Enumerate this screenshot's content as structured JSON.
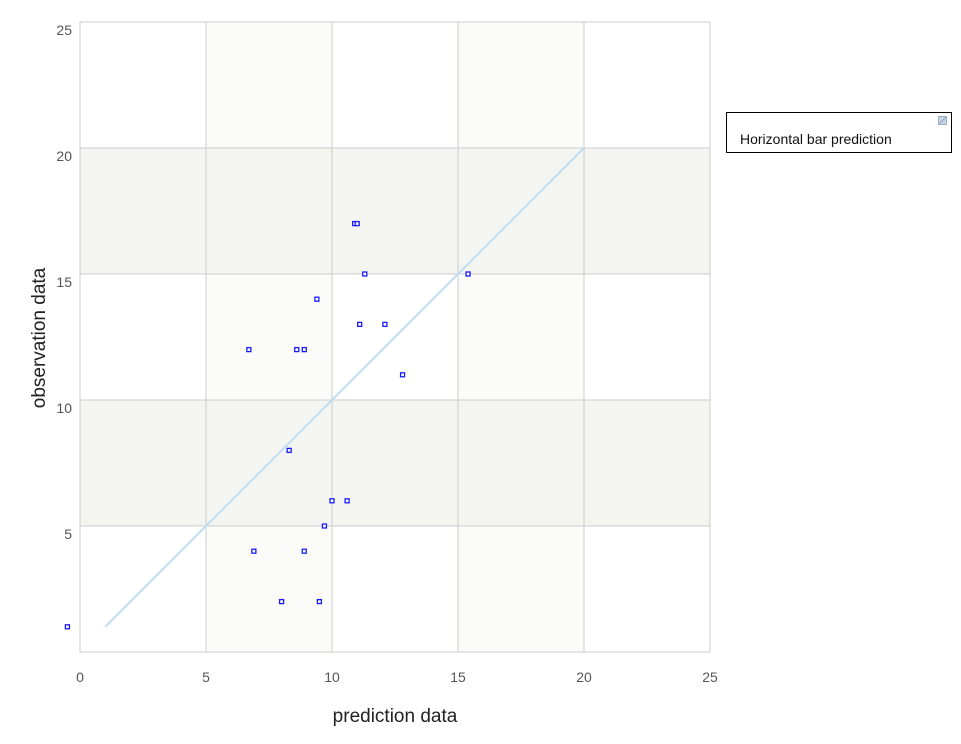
{
  "chart_data": {
    "type": "scatter",
    "title": "",
    "xlabel": "prediction data",
    "ylabel": "observation data",
    "xlim": [
      0,
      25
    ],
    "ylim": [
      0,
      25
    ],
    "x_ticks": [
      0,
      5,
      10,
      15,
      20,
      25
    ],
    "y_ticks": [
      5,
      10,
      15,
      20,
      25
    ],
    "grid": true,
    "background_bands": "alternating",
    "legend": {
      "placement": "right",
      "entries": [
        "Horizontal bar prediction"
      ]
    },
    "colors": {
      "points": "#1a1aff",
      "reference_line": "#bfdcf0",
      "band": "#f4f4f0",
      "band_alt": "#fbfbf9",
      "grid": "#cccccc"
    },
    "reference_line": {
      "x": [
        1,
        20
      ],
      "y": [
        1,
        20
      ]
    },
    "series": [
      {
        "points": [
          {
            "x": -0.5,
            "y": 1
          },
          {
            "x": 6.7,
            "y": 12
          },
          {
            "x": 6.9,
            "y": 4
          },
          {
            "x": 8.0,
            "y": 2
          },
          {
            "x": 8.3,
            "y": 8
          },
          {
            "x": 8.6,
            "y": 12
          },
          {
            "x": 8.9,
            "y": 12
          },
          {
            "x": 8.9,
            "y": 4
          },
          {
            "x": 9.4,
            "y": 14
          },
          {
            "x": 9.5,
            "y": 2
          },
          {
            "x": 9.7,
            "y": 5
          },
          {
            "x": 10.0,
            "y": 6
          },
          {
            "x": 10.6,
            "y": 6
          },
          {
            "x": 10.9,
            "y": 17
          },
          {
            "x": 11.0,
            "y": 17
          },
          {
            "x": 11.1,
            "y": 13
          },
          {
            "x": 11.3,
            "y": 15
          },
          {
            "x": 12.1,
            "y": 13
          },
          {
            "x": 12.8,
            "y": 11
          },
          {
            "x": 15.4,
            "y": 15
          }
        ]
      }
    ]
  }
}
